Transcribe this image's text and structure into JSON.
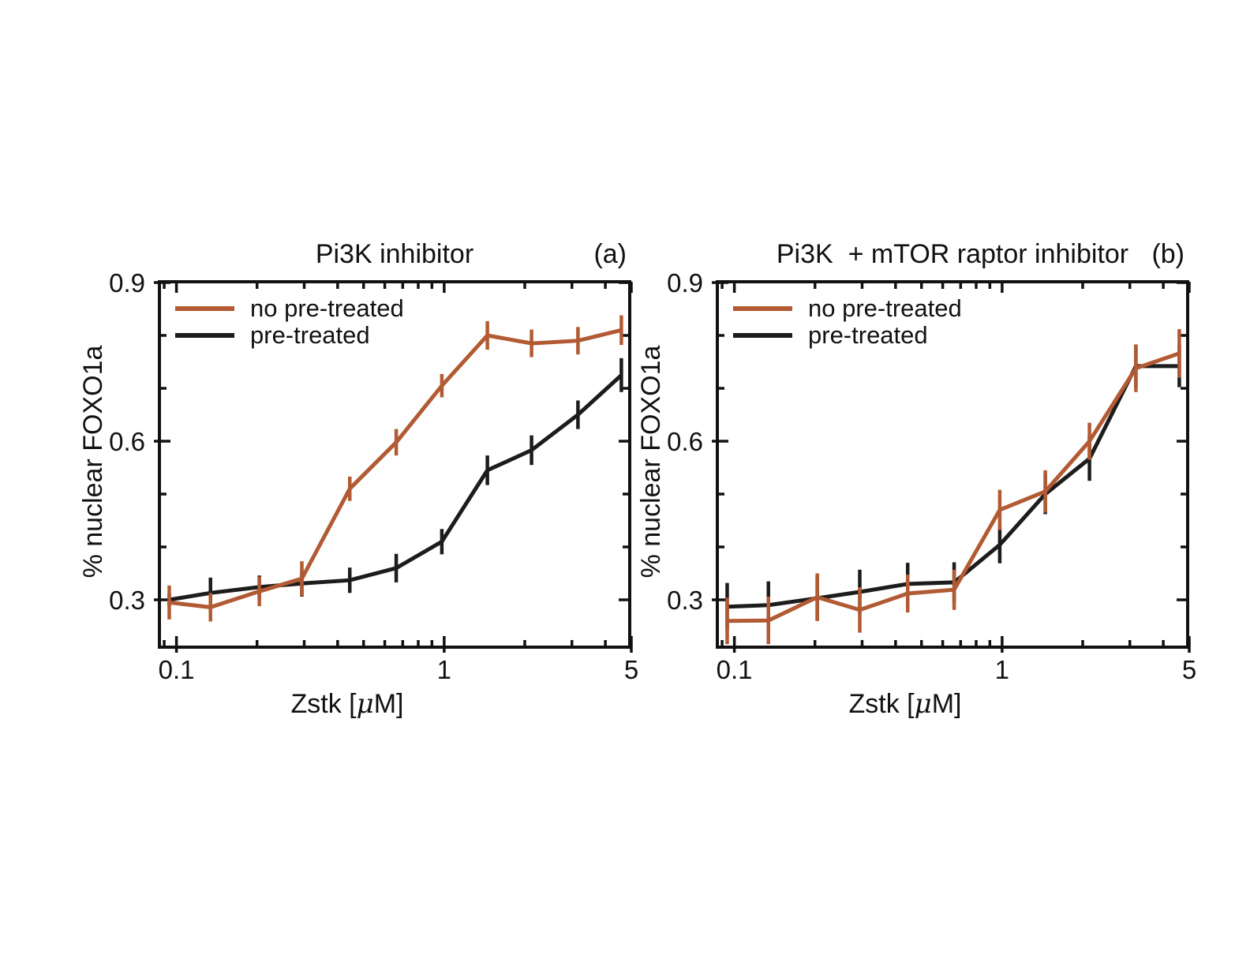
{
  "figure": {
    "background": "#ffffff",
    "frame_color": "#111111",
    "series_colors": {
      "no_pretreated": "#b25a33",
      "pretreated": "#1c1c1c"
    },
    "legend": {
      "no_pretreated": "no pre-treated",
      "pretreated": "pre-treated"
    },
    "ylabel": "% nuclear FOXO1a",
    "xlabel": {
      "prefix": "Zstk [",
      "mu": "μ",
      "suffix": "M]"
    }
  },
  "chart_data": [
    {
      "id": "a",
      "type": "line",
      "title": "Pi3K inhibitor",
      "tag": "(a)",
      "xlabel": "Zstk [μM]",
      "ylabel": "% nuclear FOXO1a",
      "x_scale": "log",
      "grid": false,
      "legend_position": "upper-left",
      "xlim": [
        0.0852,
        5.0
      ],
      "ylim": [
        0.2075,
        0.9045
      ],
      "x_major_ticks": [
        0.1,
        1,
        5
      ],
      "x_major_labels": [
        "0.1",
        "1",
        "5"
      ],
      "x_minor_ticks": [
        0.09,
        0.2,
        0.3,
        0.4,
        0.5,
        0.6,
        0.7,
        0.8,
        0.9,
        2,
        3,
        4
      ],
      "y_major_ticks": [
        0.3,
        0.6,
        0.9
      ],
      "y_major_labels": [
        "0.3",
        "0.6",
        "0.9"
      ],
      "y_minor_ticks": [
        0.4,
        0.5,
        0.7,
        0.8
      ],
      "x": [
        0.094,
        0.134,
        0.204,
        0.294,
        0.444,
        0.662,
        0.98,
        1.45,
        2.12,
        3.16,
        4.59
      ],
      "series": [
        {
          "name": "no pre-treated",
          "color_key": "no_pretreated",
          "y": [
            0.295,
            0.286,
            0.316,
            0.34,
            0.51,
            0.598,
            0.705,
            0.8,
            0.785,
            0.79,
            0.81
          ],
          "err": [
            0.032,
            0.027,
            0.028,
            0.033,
            0.023,
            0.025,
            0.022,
            0.027,
            0.026,
            0.026,
            0.028
          ]
        },
        {
          "name": "pre-treated",
          "color_key": "pretreated",
          "y": [
            0.3,
            0.313,
            0.324,
            0.331,
            0.337,
            0.36,
            0.41,
            0.545,
            0.583,
            0.65,
            0.725
          ],
          "err": [
            0.012,
            0.029,
            0.022,
            0.025,
            0.024,
            0.027,
            0.024,
            0.028,
            0.028,
            0.027,
            0.032
          ]
        }
      ]
    },
    {
      "id": "b",
      "type": "line",
      "title": "Pi3K  + mTOR raptor inhibitor",
      "tag": "(b)",
      "xlabel": "Zstk [μM]",
      "ylabel": "% nuclear FOXO1a",
      "x_scale": "log",
      "grid": false,
      "legend_position": "upper-left",
      "xlim": [
        0.0852,
        5.0
      ],
      "ylim": [
        0.2075,
        0.9045
      ],
      "x_major_ticks": [
        0.1,
        1,
        5
      ],
      "x_major_labels": [
        "0.1",
        "1",
        "5"
      ],
      "x_minor_ticks": [
        0.09,
        0.2,
        0.3,
        0.4,
        0.5,
        0.6,
        0.7,
        0.8,
        0.9,
        2,
        3,
        4
      ],
      "y_major_ticks": [
        0.3,
        0.6,
        0.9
      ],
      "y_major_labels": [
        "0.3",
        "0.6",
        "0.9"
      ],
      "y_minor_ticks": [
        0.4,
        0.5,
        0.7,
        0.8
      ],
      "x": [
        0.094,
        0.134,
        0.204,
        0.294,
        0.444,
        0.662,
        0.98,
        1.45,
        2.12,
        3.16,
        4.59
      ],
      "series": [
        {
          "name": "no pre-treated",
          "color_key": "no_pretreated",
          "y": [
            0.26,
            0.261,
            0.305,
            0.281,
            0.312,
            0.319,
            0.47,
            0.505,
            0.6,
            0.738,
            0.766
          ],
          "err": [
            0.044,
            0.045,
            0.045,
            0.043,
            0.036,
            0.038,
            0.038,
            0.04,
            0.035,
            0.045,
            0.046
          ]
        },
        {
          "name": "pre-treated",
          "color_key": "pretreated",
          "y": [
            0.287,
            0.29,
            0.303,
            0.315,
            0.33,
            0.333,
            0.404,
            0.5,
            0.567,
            0.742,
            0.742
          ],
          "err": [
            0.045,
            0.045,
            0.042,
            0.042,
            0.04,
            0.038,
            0.035,
            0.038,
            0.042,
            0.04,
            0.04
          ]
        }
      ]
    }
  ]
}
